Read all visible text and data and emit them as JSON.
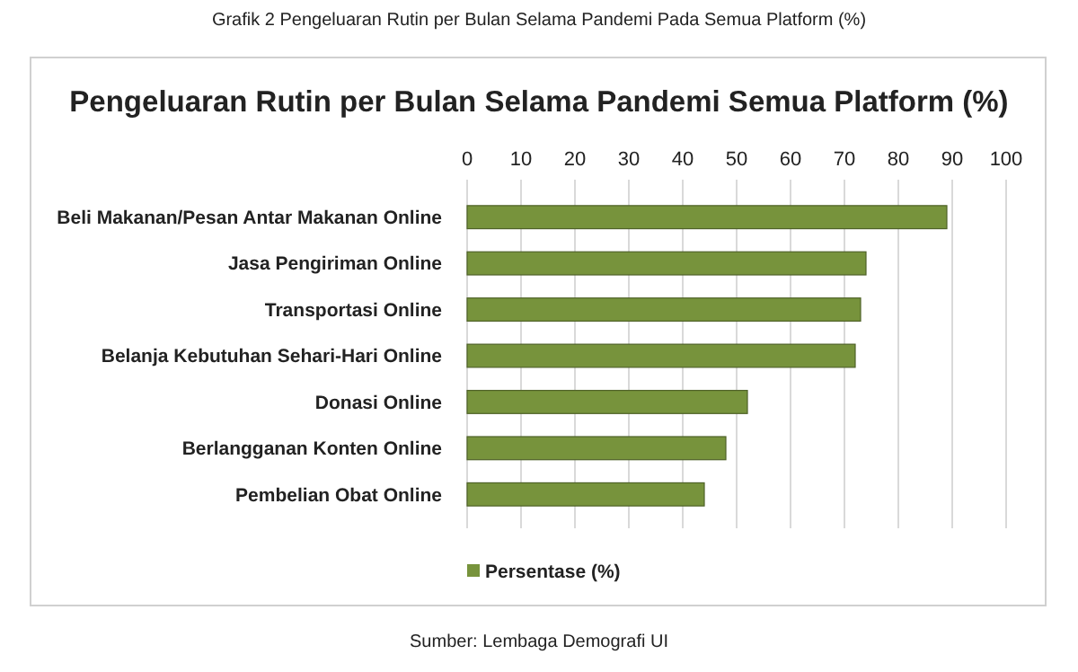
{
  "chart_data": {
    "type": "bar",
    "orientation": "horizontal",
    "title": "Pengeluaran Rutin per Bulan Selama Pandemi Semua Platform (%)",
    "subtitle": "Grafik 2 Pengeluaran Rutin per Bulan Selama Pandemi Pada Semua Platform (%)",
    "categories": [
      "Beli Makanan/Pesan Antar Makanan Online",
      "Jasa Pengiriman Online",
      "Transportasi Online",
      "Belanja Kebutuhan Sehari-Hari Online",
      "Donasi Online",
      "Berlangganan Konten Online",
      "Pembelian Obat Online"
    ],
    "series": [
      {
        "name": "Persentase (%)",
        "color": "#77933c",
        "values": [
          89,
          74,
          73,
          72,
          52,
          48,
          44
        ]
      }
    ],
    "xlim": [
      0,
      100
    ],
    "xticks": [
      0,
      10,
      20,
      30,
      40,
      50,
      60,
      70,
      80,
      90,
      100
    ],
    "grid": "x",
    "legend": "bottom left",
    "annotations": [
      "Sumber: Lembaga Demografi UI"
    ]
  }
}
